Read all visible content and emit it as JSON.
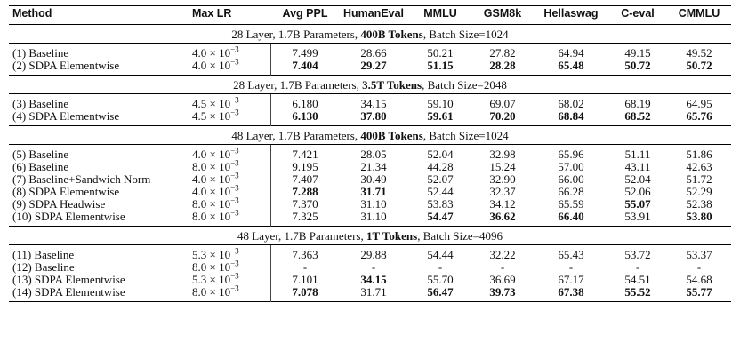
{
  "columns": [
    "Method",
    "Max LR",
    "Avg PPL",
    "HumanEval",
    "MMLU",
    "GSM8k",
    "Hellaswag",
    "C-eval",
    "CMMLU"
  ],
  "sections": [
    {
      "label_pre": "28 Layer, 1.7B Parameters, ",
      "label_bold": "400B Tokens",
      "label_post": ", Batch Size=1024",
      "rows": [
        {
          "method": "(1) Baseline",
          "lr_base": "4.0 × 10",
          "lr_exp": "−3",
          "cells": [
            "7.499",
            "28.66",
            "50.21",
            "27.82",
            "64.94",
            "49.15",
            "49.52"
          ],
          "bold": [
            false,
            false,
            false,
            false,
            false,
            false,
            false
          ]
        },
        {
          "method": "(2) SDPA Elementwise",
          "lr_base": "4.0 × 10",
          "lr_exp": "−3",
          "cells": [
            "7.404",
            "29.27",
            "51.15",
            "28.28",
            "65.48",
            "50.72",
            "50.72"
          ],
          "bold": [
            true,
            true,
            true,
            true,
            true,
            true,
            true
          ]
        }
      ]
    },
    {
      "label_pre": "28 Layer, 1.7B Parameters, ",
      "label_bold": "3.5T Tokens",
      "label_post": ", Batch Size=2048",
      "rows": [
        {
          "method": "(3) Baseline",
          "lr_base": "4.5 × 10",
          "lr_exp": "−3",
          "cells": [
            "6.180",
            "34.15",
            "59.10",
            "69.07",
            "68.02",
            "68.19",
            "64.95"
          ],
          "bold": [
            false,
            false,
            false,
            false,
            false,
            false,
            false
          ]
        },
        {
          "method": "(4) SDPA Elementwise",
          "lr_base": "4.5 × 10",
          "lr_exp": "−3",
          "cells": [
            "6.130",
            "37.80",
            "59.61",
            "70.20",
            "68.84",
            "68.52",
            "65.76"
          ],
          "bold": [
            true,
            true,
            true,
            true,
            true,
            true,
            true
          ]
        }
      ]
    },
    {
      "label_pre": "48 Layer, 1.7B Parameters, ",
      "label_bold": "400B Tokens",
      "label_post": ", Batch Size=1024",
      "rows": [
        {
          "method": "(5) Baseline",
          "lr_base": "4.0 × 10",
          "lr_exp": "−3",
          "cells": [
            "7.421",
            "28.05",
            "52.04",
            "32.98",
            "65.96",
            "51.11",
            "51.86"
          ],
          "bold": [
            false,
            false,
            false,
            false,
            false,
            false,
            false
          ]
        },
        {
          "method": "(6) Baseline",
          "lr_base": "8.0 × 10",
          "lr_exp": "−3",
          "cells": [
            "9.195",
            "21.34",
            "44.28",
            "15.24",
            "57.00",
            "43.11",
            "42.63"
          ],
          "bold": [
            false,
            false,
            false,
            false,
            false,
            false,
            false
          ]
        },
        {
          "method": "(7) Baseline+Sandwich Norm",
          "lr_base": "4.0 × 10",
          "lr_exp": "−3",
          "cells": [
            "7.407",
            "30.49",
            "52.07",
            "32.90",
            "66.00",
            "52.04",
            "51.72"
          ],
          "bold": [
            false,
            false,
            false,
            false,
            false,
            false,
            false
          ]
        },
        {
          "method": "(8) SDPA Elementwise",
          "lr_base": "4.0 × 10",
          "lr_exp": "−3",
          "cells": [
            "7.288",
            "31.71",
            "52.44",
            "32.37",
            "66.28",
            "52.06",
            "52.29"
          ],
          "bold": [
            true,
            true,
            false,
            false,
            false,
            false,
            false
          ]
        },
        {
          "method": "(9) SDPA Headwise",
          "lr_base": "8.0 × 10",
          "lr_exp": "−3",
          "cells": [
            "7.370",
            "31.10",
            "53.83",
            "34.12",
            "65.59",
            "55.07",
            "52.38"
          ],
          "bold": [
            false,
            false,
            false,
            false,
            false,
            true,
            false
          ]
        },
        {
          "method": "(10) SDPA Elementwise",
          "lr_base": "8.0 × 10",
          "lr_exp": "−3",
          "cells": [
            "7.325",
            "31.10",
            "54.47",
            "36.62",
            "66.40",
            "53.91",
            "53.80"
          ],
          "bold": [
            false,
            false,
            true,
            true,
            true,
            false,
            true
          ]
        }
      ]
    },
    {
      "label_pre": "48 Layer, 1.7B Parameters, ",
      "label_bold": "1T Tokens",
      "label_post": ", Batch Size=4096",
      "rows": [
        {
          "method": "(11) Baseline",
          "lr_base": "5.3 × 10",
          "lr_exp": "−3",
          "cells": [
            "7.363",
            "29.88",
            "54.44",
            "32.22",
            "65.43",
            "53.72",
            "53.37"
          ],
          "bold": [
            false,
            false,
            false,
            false,
            false,
            false,
            false
          ]
        },
        {
          "method": "(12) Baseline",
          "lr_base": "8.0 × 10",
          "lr_exp": "−3",
          "cells": [
            "-",
            "-",
            "-",
            "-",
            "-",
            "-",
            "-"
          ],
          "bold": [
            false,
            false,
            false,
            false,
            false,
            false,
            false
          ]
        },
        {
          "method": "(13) SDPA Elementwise",
          "lr_base": "5.3 × 10",
          "lr_exp": "−3",
          "cells": [
            "7.101",
            "34.15",
            "55.70",
            "36.69",
            "67.17",
            "54.51",
            "54.68"
          ],
          "bold": [
            false,
            true,
            false,
            false,
            false,
            false,
            false
          ]
        },
        {
          "method": "(14) SDPA Elementwise",
          "lr_base": "8.0 × 10",
          "lr_exp": "−3",
          "cells": [
            "7.078",
            "31.71",
            "56.47",
            "39.73",
            "67.38",
            "55.52",
            "55.77"
          ],
          "bold": [
            true,
            false,
            true,
            true,
            true,
            true,
            true
          ]
        }
      ]
    }
  ]
}
